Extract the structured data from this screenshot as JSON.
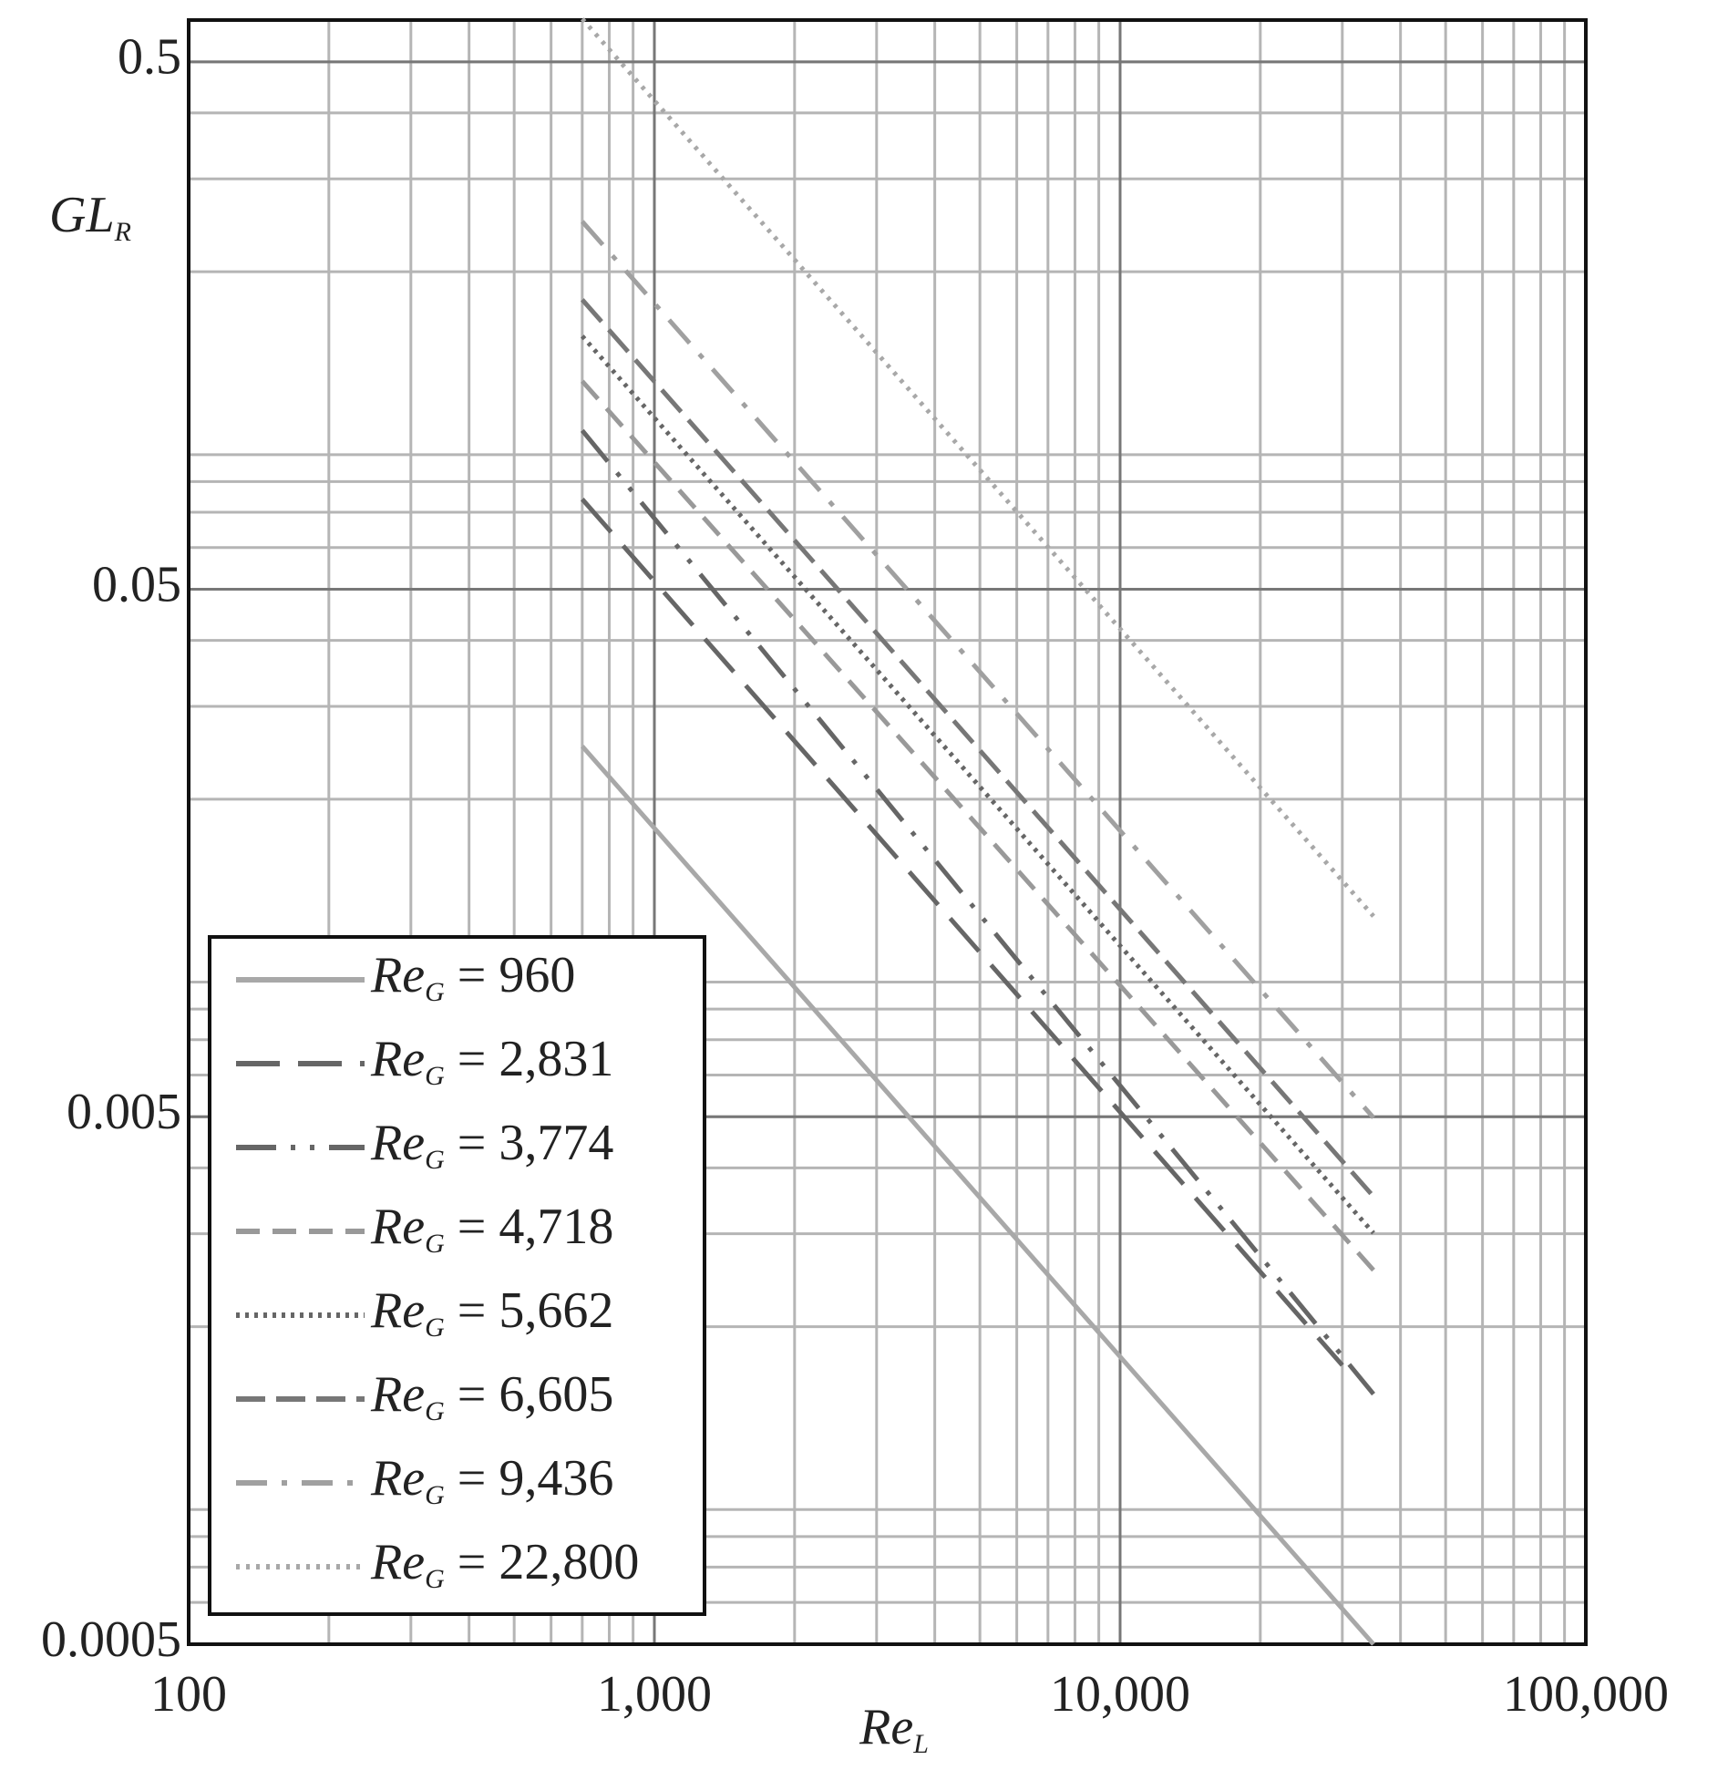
{
  "chart_data": {
    "type": "line",
    "x_label": "ReL",
    "y_label": "GLR",
    "xscale": "log",
    "yscale": "log",
    "grid": true,
    "minor_grid": true,
    "legend": "lower left",
    "xlim": [
      100,
      100000
    ],
    "xticks": [
      100,
      {
        "value": 1000,
        "label": "1,000"
      },
      {
        "value": 10000,
        "label": "10,000"
      },
      {
        "value": 100000,
        "label": "100,000"
      }
    ],
    "ylim": [
      0.0005,
      0.6
    ],
    "yticks": [
      0.0005,
      0.005,
      0.05,
      0.5
    ],
    "series": [
      {
        "name": "ReG = 960",
        "color": "#a8a8a8",
        "dash": "solid",
        "x": [
          700,
          35000
        ],
        "values": [
          0.0252,
          0.0005
        ]
      },
      {
        "name": "ReG = 2,831",
        "color": "#666666",
        "dash": "long-dash",
        "x": [
          700,
          30000
        ],
        "values": [
          0.0741,
          0.00169
        ]
      },
      {
        "name": "ReG = 3,774",
        "color": "#666666",
        "dash": "dash-dot-dot",
        "x": [
          700,
          35000
        ],
        "values": [
          0.1,
          0.00149
        ]
      },
      {
        "name": "ReG = 4,718",
        "color": "#999999",
        "dash": "dash",
        "x": [
          700,
          35000
        ],
        "values": [
          0.124,
          0.00256
        ]
      },
      {
        "name": "ReG = 5,662",
        "color": "#666666",
        "dash": "dot",
        "x": [
          700,
          35000
        ],
        "values": [
          0.151,
          0.00301
        ]
      },
      {
        "name": "ReG = 6,605",
        "color": "#777777",
        "dash": "medium-dash",
        "x": [
          700,
          35000
        ],
        "values": [
          0.177,
          0.00353
        ]
      },
      {
        "name": "ReG = 9,436",
        "color": "#a0a0a0",
        "dash": "dash-dot",
        "x": [
          700,
          35000
        ],
        "values": [
          0.249,
          0.00498
        ]
      },
      {
        "name": "ReG = 22,800",
        "color": "#a8a8a8",
        "dash": "light-dot",
        "x": [
          700,
          35000
        ],
        "values": [
          0.603,
          0.012
        ]
      }
    ]
  }
}
